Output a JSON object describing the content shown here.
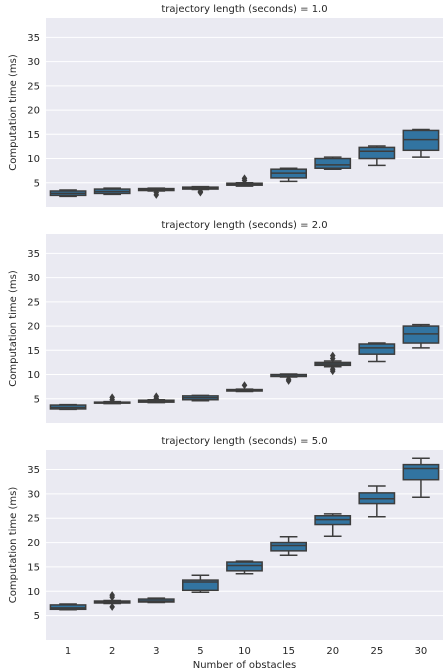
{
  "chart_data": [
    {
      "type": "box",
      "title": "trajectory length (seconds) = 1.0",
      "xlabel": "",
      "ylabel": "Computation time (ms)",
      "ylim": [
        0,
        39
      ],
      "yticks": [
        5,
        10,
        15,
        20,
        25,
        30,
        35
      ],
      "categories": [
        "1",
        "2",
        "3",
        "5",
        "10",
        "15",
        "20",
        "25",
        "30"
      ],
      "boxes": [
        {
          "low": 2.2,
          "q1": 2.4,
          "median": 2.8,
          "q3": 3.3,
          "high": 3.5,
          "outliers": []
        },
        {
          "low": 2.6,
          "q1": 2.8,
          "median": 3.2,
          "q3": 3.7,
          "high": 3.9,
          "outliers": []
        },
        {
          "low": 3.3,
          "q1": 3.4,
          "median": 3.6,
          "q3": 3.8,
          "high": 3.9,
          "outliers": [
            2.5,
            3.0
          ]
        },
        {
          "low": 3.6,
          "q1": 3.7,
          "median": 3.9,
          "q3": 4.1,
          "high": 4.2,
          "outliers": [
            3.0,
            3.2
          ]
        },
        {
          "low": 4.3,
          "q1": 4.5,
          "median": 4.7,
          "q3": 4.9,
          "high": 5.0,
          "outliers": [
            5.5,
            5.9
          ]
        },
        {
          "low": 5.3,
          "q1": 6.0,
          "median": 7.0,
          "q3": 7.8,
          "high": 8.0,
          "outliers": []
        },
        {
          "low": 7.8,
          "q1": 8.0,
          "median": 8.7,
          "q3": 10.0,
          "high": 10.3,
          "outliers": []
        },
        {
          "low": 8.6,
          "q1": 10.0,
          "median": 11.5,
          "q3": 12.3,
          "high": 12.6,
          "outliers": []
        },
        {
          "low": 10.3,
          "q1": 11.7,
          "median": 13.9,
          "q3": 15.8,
          "high": 16.0,
          "outliers": []
        }
      ]
    },
    {
      "type": "box",
      "title": "trajectory length (seconds) = 2.0",
      "xlabel": "",
      "ylabel": "Computation time (ms)",
      "ylim": [
        0,
        39
      ],
      "yticks": [
        5,
        10,
        15,
        20,
        25,
        30,
        35
      ],
      "categories": [
        "1",
        "2",
        "3",
        "5",
        "10",
        "15",
        "20",
        "25",
        "30"
      ],
      "boxes": [
        {
          "low": 2.8,
          "q1": 2.9,
          "median": 3.2,
          "q3": 3.7,
          "high": 3.8,
          "outliers": []
        },
        {
          "low": 4.0,
          "q1": 4.1,
          "median": 4.2,
          "q3": 4.3,
          "high": 4.4,
          "outliers": [
            4.8,
            5.3
          ]
        },
        {
          "low": 4.2,
          "q1": 4.3,
          "median": 4.5,
          "q3": 4.7,
          "high": 4.8,
          "outliers": [
            5.1,
            5.5
          ]
        },
        {
          "low": 4.6,
          "q1": 4.8,
          "median": 5.2,
          "q3": 5.6,
          "high": 5.7,
          "outliers": []
        },
        {
          "low": 6.5,
          "q1": 6.6,
          "median": 6.8,
          "q3": 6.9,
          "high": 7.0,
          "outliers": [
            7.8
          ]
        },
        {
          "low": 9.5,
          "q1": 9.6,
          "median": 9.9,
          "q3": 10.0,
          "high": 10.1,
          "outliers": [
            8.7,
            9.0
          ]
        },
        {
          "low": 11.6,
          "q1": 11.9,
          "median": 12.2,
          "q3": 12.5,
          "high": 12.8,
          "outliers": [
            10.7,
            11.1,
            13.3,
            13.9
          ]
        },
        {
          "low": 12.7,
          "q1": 14.2,
          "median": 15.5,
          "q3": 16.3,
          "high": 16.5,
          "outliers": []
        },
        {
          "low": 15.5,
          "q1": 16.5,
          "median": 18.4,
          "q3": 20.0,
          "high": 20.3,
          "outliers": []
        }
      ]
    },
    {
      "type": "box",
      "title": "trajectory length (seconds) = 5.0",
      "xlabel": "Number of obstacles",
      "ylabel": "Computation time (ms)",
      "ylim": [
        0,
        39
      ],
      "yticks": [
        5,
        10,
        15,
        20,
        25,
        30,
        35
      ],
      "categories": [
        "1",
        "2",
        "3",
        "5",
        "10",
        "15",
        "20",
        "25",
        "30"
      ],
      "boxes": [
        {
          "low": 6.2,
          "q1": 6.3,
          "median": 6.6,
          "q3": 7.2,
          "high": 7.4,
          "outliers": []
        },
        {
          "low": 7.5,
          "q1": 7.6,
          "median": 7.8,
          "q3": 8.0,
          "high": 8.1,
          "outliers": [
            6.8,
            8.8,
            9.2
          ]
        },
        {
          "low": 7.7,
          "q1": 7.8,
          "median": 8.0,
          "q3": 8.4,
          "high": 8.6,
          "outliers": []
        },
        {
          "low": 9.8,
          "q1": 10.2,
          "median": 11.9,
          "q3": 12.3,
          "high": 13.3,
          "outliers": []
        },
        {
          "low": 13.6,
          "q1": 14.2,
          "median": 15.3,
          "q3": 16.0,
          "high": 16.2,
          "outliers": []
        },
        {
          "low": 17.4,
          "q1": 18.3,
          "median": 19.4,
          "q3": 20.0,
          "high": 21.2,
          "outliers": []
        },
        {
          "low": 21.3,
          "q1": 23.7,
          "median": 24.7,
          "q3": 25.5,
          "high": 25.9,
          "outliers": []
        },
        {
          "low": 25.3,
          "q1": 28.0,
          "median": 29.0,
          "q3": 30.2,
          "high": 31.6,
          "outliers": []
        },
        {
          "low": 29.3,
          "q1": 32.9,
          "median": 35.2,
          "q3": 36.0,
          "high": 37.3,
          "outliers": []
        }
      ]
    }
  ],
  "colors": {
    "panel_bg": "#eaeaf2",
    "grid": "#ffffff",
    "box_fill": "#3274a1",
    "box_line": "#3d3d3d",
    "text": "#262626"
  }
}
